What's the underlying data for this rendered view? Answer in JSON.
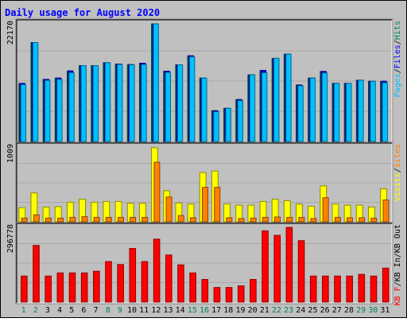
{
  "chart_data": {
    "type": "bar",
    "title": "Daily usage for August 2020",
    "categories": [
      "1",
      "2",
      "3",
      "4",
      "5",
      "6",
      "7",
      "8",
      "9",
      "10",
      "11",
      "12",
      "13",
      "14",
      "15",
      "16",
      "17",
      "18",
      "19",
      "20",
      "21",
      "22",
      "23",
      "24",
      "25",
      "26",
      "27",
      "28",
      "29",
      "30",
      "31"
    ],
    "weekend_days": [
      "1",
      "2",
      "8",
      "9",
      "15",
      "16",
      "22",
      "23",
      "29",
      "30"
    ],
    "panels": [
      {
        "name": "top",
        "axis_max_label": "22170",
        "ylim": [
          0,
          22170
        ],
        "legend": [
          "Pages",
          "/",
          "Files",
          "/",
          "Hits"
        ],
        "series": [
          {
            "name": "Hits",
            "color": "#00805c",
            "values": [
              10950,
              18650,
              11700,
              11950,
              13300,
              14300,
              14300,
              14850,
              14600,
              14500,
              14750,
              22150,
              13250,
              14450,
              16150,
              11950,
              5800,
              6250,
              7900,
              12550,
              13400,
              15650,
              16450,
              10650,
              11950,
              13200,
              10950,
              10950,
              11550,
              11350,
              11350
            ]
          },
          {
            "name": "Files",
            "color": "#0000ff",
            "values": [
              10950,
              18650,
              11700,
              11950,
              13300,
              14300,
              14300,
              14850,
              14600,
              14500,
              14750,
              22150,
              13250,
              14450,
              16150,
              11950,
              5800,
              6250,
              7900,
              12550,
              13400,
              15650,
              16450,
              10650,
              11950,
              13200,
              10950,
              10950,
              11550,
              11350,
              11350
            ]
          },
          {
            "name": "Pages",
            "color": "#00c0ff",
            "values": [
              10700,
              18650,
              11500,
              11700,
              12950,
              14300,
              14300,
              14850,
              14500,
              14450,
              14500,
              22150,
              13000,
              14450,
              15950,
              11950,
              5600,
              6250,
              7700,
              12550,
              12950,
              15700,
              16450,
              10500,
              11950,
              12900,
              10950,
              10950,
              11550,
              11350,
              11050
            ]
          }
        ]
      },
      {
        "name": "middle",
        "axis_max_label": "1009",
        "ylim": [
          0,
          1009
        ],
        "legend": [
          "Visits",
          "/",
          "Sites"
        ],
        "series": [
          {
            "name": "Visits",
            "color": "#ffff00",
            "values": [
              190,
              390,
              200,
              205,
              265,
              305,
              265,
              275,
              275,
              250,
              250,
              1000,
              420,
              255,
              240,
              665,
              685,
              240,
              225,
              225,
              275,
              305,
              285,
              240,
              210,
              485,
              240,
              225,
              225,
              200,
              445
            ]
          },
          {
            "name": "Sites",
            "color": "#ff8000",
            "values": [
              50,
              95,
              50,
              50,
              60,
              70,
              60,
              60,
              60,
              60,
              60,
              805,
              335,
              85,
              55,
              465,
              465,
              55,
              45,
              50,
              60,
              65,
              60,
              60,
              45,
              325,
              60,
              55,
              55,
              50,
              295
            ]
          }
        ]
      },
      {
        "name": "bottom",
        "axis_max_label": "296778",
        "ylim": [
          0,
          296778
        ],
        "legend": [
          "KB F",
          "/",
          "KB In",
          "/",
          "KB Out"
        ],
        "series": [
          {
            "name": "KB F",
            "color": "#ff0000",
            "values": [
              103500,
              225000,
              103500,
              116000,
              116000,
              116000,
              122500,
              161000,
              149000,
              213000,
              161000,
              250000,
              187000,
              148000,
              116000,
              90000,
              58000,
              58000,
              64500,
              90000,
              283000,
              265000,
              296778,
              244000,
              103500,
              103500,
              103500,
              103500,
              110000,
              103500,
              135000
            ]
          }
        ]
      }
    ],
    "colors": {
      "background": "#c0c0c0",
      "title": "#0000ff",
      "weekday_label": "#000000",
      "weekend_label": "#00805c"
    }
  }
}
